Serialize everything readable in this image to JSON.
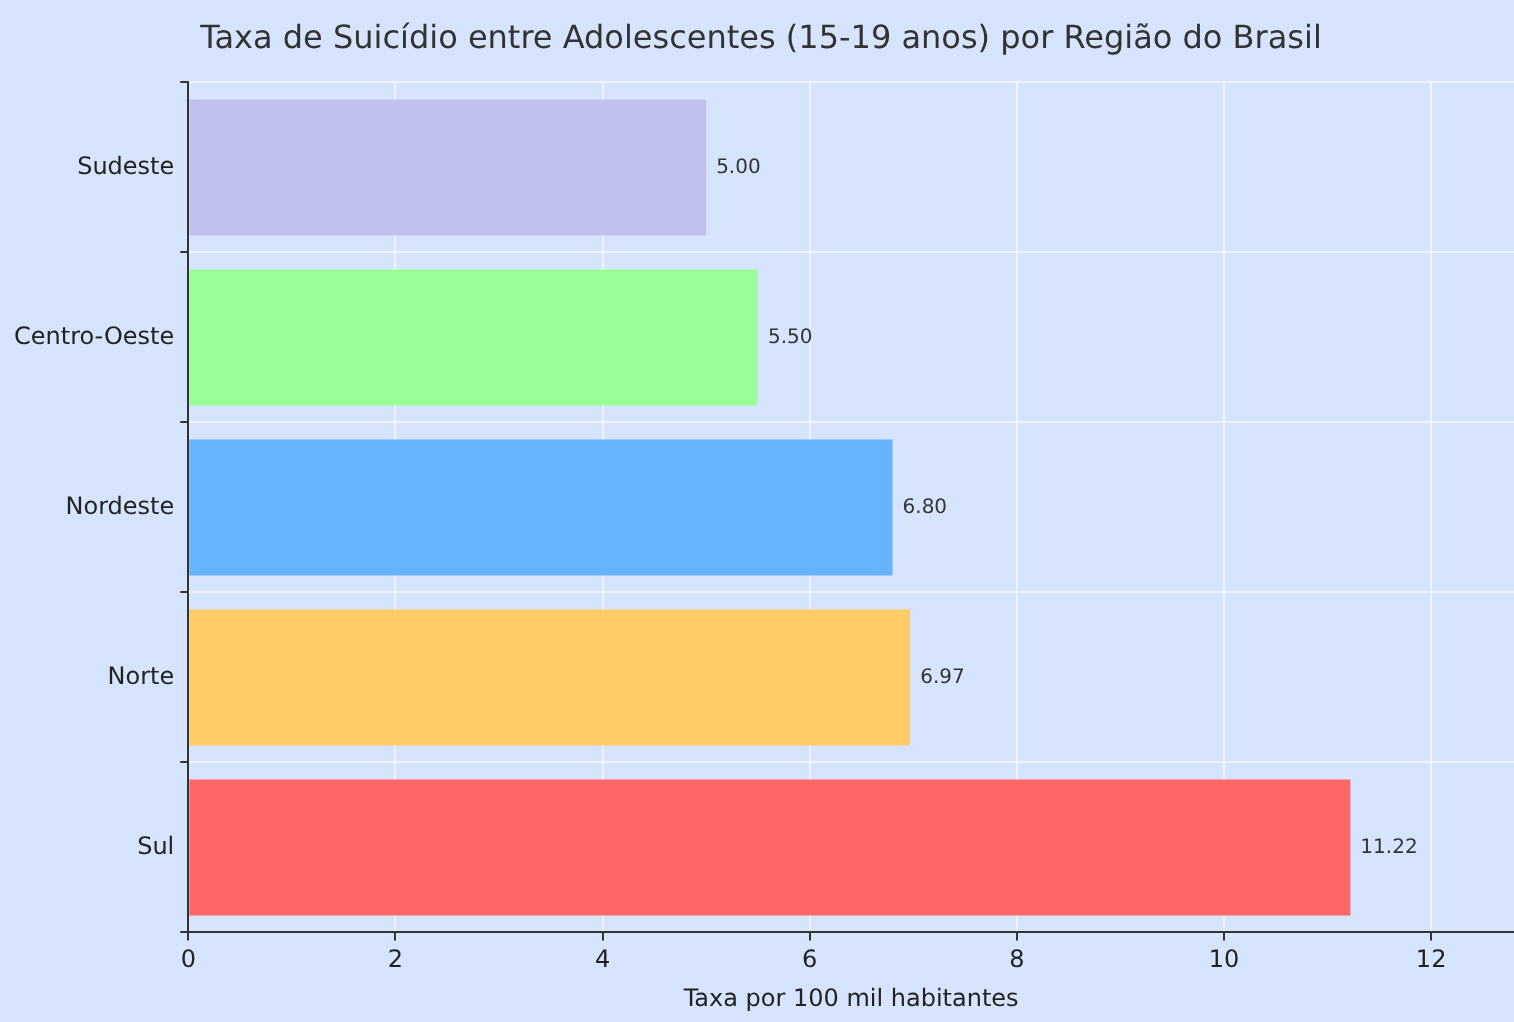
{
  "chart_data": {
    "type": "bar",
    "orientation": "horizontal",
    "title": "Taxa de Suicídio entre Adolescentes (15-19 anos) por Região do Brasil",
    "xlabel": "Taxa por 100 mil habitantes",
    "categories": [
      "Sudeste",
      "Centro-Oeste",
      "Nordeste",
      "Norte",
      "Sul"
    ],
    "values": [
      5.0,
      5.5,
      6.8,
      6.97,
      11.22
    ],
    "colors": [
      "#c1c1f0",
      "#99ff99",
      "#66b3ff",
      "#ffcc66",
      "#ff6666"
    ],
    "value_labels": [
      "5.00",
      "5.50",
      "6.80",
      "6.97",
      "11.22"
    ],
    "xlim": [
      0,
      12.8
    ],
    "xticks": [
      0,
      2,
      4,
      6,
      8,
      10,
      12
    ],
    "grid": true
  }
}
